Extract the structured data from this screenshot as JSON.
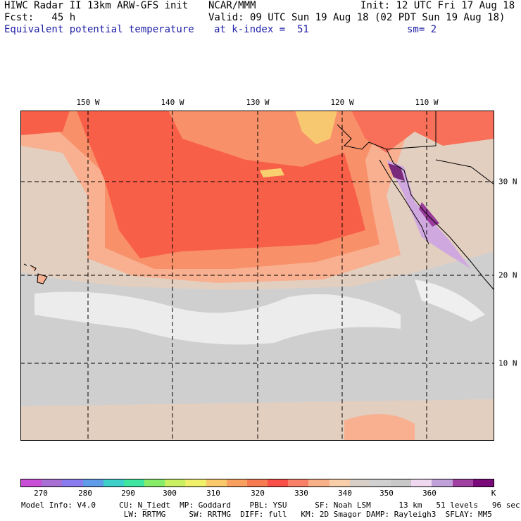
{
  "header": {
    "title": "HIWC Radar II 13km ARW-GFS init",
    "org": "NCAR/MMM",
    "init": "Init: 12 UTC Fri 17 Aug 18",
    "fcst": "Fcst:   45 h",
    "valid": "Valid: 09 UTC Sun 19 Aug 18 (02 PDT Sun 19 Aug 18)",
    "field": "Equivalent potential temperature",
    "level": "at k-index =  51",
    "smooth": "sm= 2"
  },
  "axes": {
    "lon_labels": [
      "150 W",
      "140 W",
      "130 W",
      "120 W",
      "110 W"
    ],
    "lat_labels": [
      "30 N",
      "20 N",
      "10 N"
    ]
  },
  "colorbar": {
    "unit": "K",
    "labels": [
      "270",
      "280",
      "290",
      "300",
      "310",
      "320",
      "330",
      "340",
      "350",
      "360"
    ],
    "colors": [
      "#c94fd6",
      "#a86fd4",
      "#8a7bee",
      "#5f9ce8",
      "#3fd0cc",
      "#3fe6a0",
      "#86ec6a",
      "#c8f060",
      "#f0f06a",
      "#f8c86a",
      "#f8a060",
      "#f87a50",
      "#f85048",
      "#f88068",
      "#f8b088",
      "#f8cfa8",
      "#d8cfc8",
      "#d0d0d0",
      "#c8c8c8",
      "#f0d8f0",
      "#c0a0d8",
      "#a040a0",
      "#7a0a7a"
    ]
  },
  "footer": {
    "line1": "Model Info: V4.0     CU: N_Tiedt  MP: Goddard    PBL: YSU      SF: Noah LSM      13 km   51 levels   96 sec",
    "line2": "                      LW: RRTMG     SW: RRTMG  DIFF: full   KM: 2D Smagor DAMP: Rayleigh3  SFLAY: MM5"
  }
}
